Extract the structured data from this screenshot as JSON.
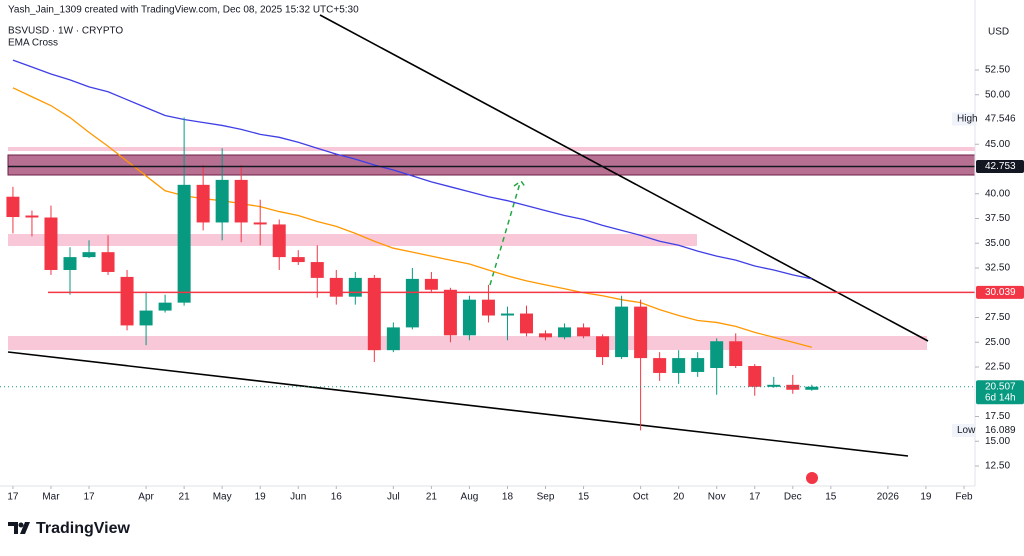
{
  "chart_data": {
    "type": "candlestick",
    "attribution": "Yash_Jain_1309 created with TradingView.com, Dec 08, 2025 15:32 UTC+5:30",
    "title": "BSVUSD · 1W · CRYPTO",
    "indicator": "EMA Cross",
    "currency": "USD",
    "brand": "TradingView",
    "up_color": "#089981",
    "down_color": "#f23645",
    "open": [
      39.7,
      37.8,
      37.6,
      32.3,
      33.6,
      34.1,
      31.6,
      26.7,
      28.2,
      29.0,
      40.9,
      37.1,
      41.4,
      37.1,
      36.9,
      33.6,
      33.1,
      31.5,
      29.6,
      31.5,
      24.2,
      26.5,
      31.4,
      30.3,
      25.7,
      29.3,
      27.7,
      27.9,
      25.9,
      25.5,
      26.5,
      25.6,
      23.5,
      28.6,
      23.4,
      21.9,
      22.0,
      22.4,
      25.1,
      22.6,
      20.5,
      20.7,
      20.2
    ],
    "high": [
      40.7,
      38.3,
      38.8,
      34.6,
      35.3,
      35.8,
      32.3,
      30.1,
      29.8,
      47.7,
      42.9,
      44.6,
      42.9,
      39.4,
      37.4,
      34.3,
      34.8,
      32.3,
      32.1,
      31.8,
      27.0,
      32.5,
      32.1,
      30.5,
      29.7,
      30.8,
      28.6,
      28.7,
      26.2,
      26.9,
      26.9,
      25.8,
      29.7,
      29.3,
      24.0,
      24.2,
      24.0,
      25.4,
      25.9,
      22.8,
      21.5,
      21.7,
      20.7
    ],
    "low": [
      36.0,
      35.7,
      31.8,
      29.8,
      33.5,
      31.8,
      26.2,
      24.7,
      28.0,
      28.7,
      36.3,
      35.3,
      35.1,
      34.8,
      32.3,
      32.8,
      29.5,
      28.8,
      28.8,
      23.0,
      24.0,
      26.3,
      30.1,
      25.0,
      25.2,
      27.0,
      25.2,
      25.6,
      25.2,
      25.3,
      25.4,
      22.7,
      23.3,
      16.1,
      21.1,
      20.8,
      21.5,
      19.7,
      22.4,
      19.6,
      20.4,
      19.8,
      20.1
    ],
    "close": [
      37.65,
      37.6,
      32.3,
      33.6,
      34.1,
      32.1,
      26.7,
      28.2,
      29.0,
      40.9,
      37.1,
      41.4,
      37.1,
      36.9,
      33.6,
      33.1,
      31.5,
      29.6,
      31.5,
      24.2,
      26.5,
      31.4,
      30.3,
      25.7,
      29.3,
      27.7,
      27.9,
      25.9,
      25.5,
      26.5,
      25.6,
      23.5,
      28.6,
      23.4,
      21.9,
      23.4,
      23.4,
      25.1,
      22.6,
      20.5,
      20.7,
      20.2,
      20.507
    ],
    "ema": [
      {
        "color": "#3f3fe6",
        "values": [
          53.5,
          52.8,
          52.1,
          51.5,
          50.8,
          50.3,
          49.5,
          48.7,
          47.9,
          47.5,
          47.2,
          46.9,
          46.5,
          46.0,
          45.7,
          45.2,
          44.6,
          44.0,
          43.5,
          42.9,
          42.4,
          41.8,
          41.2,
          40.7,
          40.2,
          39.7,
          39.3,
          38.8,
          38.3,
          37.8,
          37.4,
          36.8,
          36.3,
          35.8,
          35.2,
          34.8,
          34.2,
          33.7,
          33.3,
          32.7,
          32.3,
          31.8,
          31.4
        ]
      },
      {
        "color": "#ff9800",
        "values": [
          50.7,
          49.8,
          48.9,
          47.7,
          46.2,
          44.8,
          43.3,
          41.8,
          40.3,
          39.8,
          39.5,
          39.3,
          39.0,
          38.7,
          38.2,
          37.8,
          37.2,
          36.7,
          36.0,
          35.2,
          34.5,
          34.1,
          33.7,
          33.3,
          32.9,
          32.3,
          31.7,
          31.2,
          30.8,
          30.4,
          30.0,
          29.7,
          29.3,
          29.0,
          28.3,
          27.7,
          27.2,
          27.0,
          26.6,
          26.0,
          25.5,
          25.0,
          24.5
        ]
      }
    ],
    "markers": [
      {
        "label": "High",
        "value": 47.546
      },
      {
        "value": 42.753,
        "color": "#131722"
      },
      {
        "value": 30.039,
        "color": "#f23645"
      },
      {
        "value": 20.507,
        "color": "#089981",
        "countdown": "6d 14h"
      },
      {
        "label": "Low",
        "value": 16.089
      }
    ],
    "ylim": [
      10.48,
      59.57
    ],
    "yticks": [
      {
        "value": 12.5,
        "label": "12.50"
      },
      {
        "value": 15,
        "label": "15.00"
      },
      {
        "value": 17.5,
        "label": "17.50"
      },
      {
        "value": 22.5,
        "label": "22.50"
      },
      {
        "value": 25,
        "label": "25.00"
      },
      {
        "value": 27.5,
        "label": "27.50"
      },
      {
        "value": 32.5,
        "label": "32.50"
      },
      {
        "value": 35,
        "label": "35.00"
      },
      {
        "value": 37.5,
        "label": "37.50"
      },
      {
        "value": 40,
        "label": "40.00"
      },
      {
        "value": 45,
        "label": "45.00"
      },
      {
        "value": 50,
        "label": "50.00"
      },
      {
        "value": 52.5,
        "label": "52.50"
      }
    ],
    "xlim": [
      -0.68,
      50.58
    ],
    "xticks": [
      {
        "value": 0,
        "label": "17"
      },
      {
        "value": 2,
        "label": "Mar"
      },
      {
        "value": 4,
        "label": "17"
      },
      {
        "value": 7,
        "label": "Apr"
      },
      {
        "value": 9,
        "label": "21"
      },
      {
        "value": 11,
        "label": "May"
      },
      {
        "value": 13,
        "label": "19"
      },
      {
        "value": 15,
        "label": "Jun"
      },
      {
        "value": 17,
        "label": "16"
      },
      {
        "value": 20,
        "label": "Jul"
      },
      {
        "value": 22,
        "label": "21"
      },
      {
        "value": 24,
        "label": "Aug"
      },
      {
        "value": 26,
        "label": "18"
      },
      {
        "value": 28,
        "label": "Sep"
      },
      {
        "value": 30,
        "label": "15"
      },
      {
        "value": 33,
        "label": "Oct"
      },
      {
        "value": 35,
        "label": "20"
      },
      {
        "value": 37,
        "label": "Nov"
      },
      {
        "value": 39,
        "label": "17"
      },
      {
        "value": 41,
        "label": "Dec"
      },
      {
        "value": 43,
        "label": "15"
      },
      {
        "value": 46,
        "label": "2026"
      },
      {
        "value": 48,
        "label": "19"
      },
      {
        "value": 50,
        "label": "Feb"
      }
    ],
    "grid": false
  }
}
